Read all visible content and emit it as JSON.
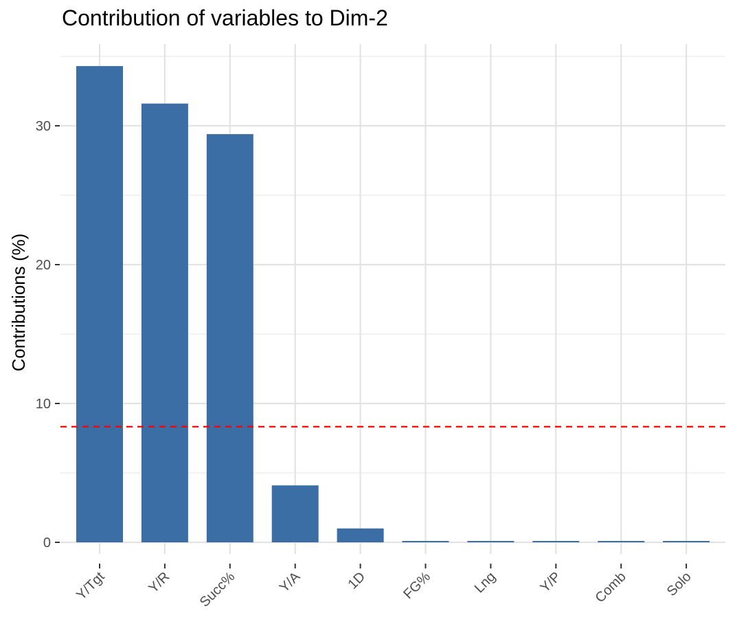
{
  "chart_data": {
    "type": "bar",
    "title": "Contribution of variables to Dim-2",
    "xlabel": "",
    "ylabel": "Contributions (%)",
    "categories": [
      "Y/Tgt",
      "Y/R",
      "Succ%",
      "Y/A",
      "1D",
      "FG%",
      "Lng",
      "Y/P",
      "Comb",
      "Solo"
    ],
    "values": [
      34.3,
      31.6,
      29.4,
      4.1,
      1.0,
      0.1,
      0.1,
      0.1,
      0.1,
      0.1
    ],
    "ylim": [
      0,
      35.5
    ],
    "yticks": [
      0,
      10,
      20,
      30
    ],
    "reference_line": {
      "value": 8.33,
      "style": "dashed",
      "color": "#ff0000"
    },
    "bar_color": "#3a6ea5",
    "grid": true,
    "legend": "none"
  }
}
